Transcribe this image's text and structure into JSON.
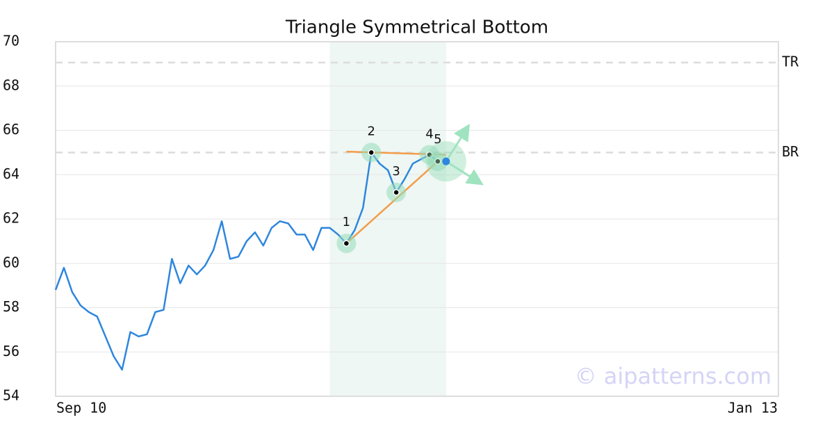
{
  "chart_data": {
    "type": "line",
    "title": "Triangle Symmetrical Bottom",
    "categories": [
      "Sep 10",
      null,
      null,
      null,
      null,
      null,
      null,
      null,
      null,
      null,
      null,
      null,
      null,
      null,
      null,
      null,
      null,
      null,
      null,
      null,
      null,
      null,
      null,
      null,
      null,
      null,
      null,
      null,
      null,
      null,
      null,
      null,
      null,
      null,
      null,
      null,
      null,
      null,
      null,
      null,
      null,
      null,
      null,
      null,
      null,
      null,
      null,
      null,
      null,
      null,
      null,
      null,
      null,
      null,
      null,
      null,
      null,
      null,
      null,
      null,
      null,
      null,
      null,
      null,
      null,
      null,
      null,
      null,
      null,
      null,
      null,
      null,
      null,
      null,
      null,
      null,
      null,
      null,
      null,
      null,
      null,
      null,
      null,
      null,
      null,
      null,
      null,
      "Jan 13"
    ],
    "values": [
      58.8,
      59.8,
      58.7,
      58.1,
      57.8,
      57.6,
      56.7,
      55.8,
      55.2,
      56.9,
      56.7,
      56.8,
      57.8,
      57.9,
      60.2,
      59.1,
      59.9,
      59.5,
      59.9,
      60.6,
      61.9,
      60.2,
      60.3,
      61.0,
      61.4,
      60.8,
      61.6,
      61.9,
      61.8,
      61.3,
      61.3,
      60.6,
      61.6,
      61.6,
      61.3,
      60.9,
      61.5,
      62.5,
      65.0,
      64.5,
      64.2,
      63.2,
      63.8,
      64.5,
      64.7,
      64.9,
      64.6,
      null,
      null,
      null,
      null,
      null,
      null,
      null,
      null,
      null,
      null,
      null,
      null,
      null,
      null,
      null,
      null,
      null,
      null,
      null,
      null,
      null,
      null,
      null,
      null,
      null,
      null,
      null,
      null,
      null,
      null,
      null,
      null,
      null,
      null,
      null,
      null,
      null,
      null,
      null,
      null,
      null
    ],
    "color": "#2e86de",
    "ylim": [
      54,
      70
    ],
    "yticks": [
      54,
      56,
      58,
      60,
      62,
      64,
      66,
      68,
      70
    ],
    "grid": true,
    "highlight": {
      "from": 33,
      "to": 47,
      "color": "#eef7f3"
    },
    "levels": [
      {
        "label": "TR",
        "value": 69.06
      },
      {
        "label": "BR",
        "value": 65.0
      }
    ],
    "pattern_points": [
      {
        "label": "1",
        "x": 35,
        "y": 60.9
      },
      {
        "label": "2",
        "x": 38,
        "y": 65.0
      },
      {
        "label": "3",
        "x": 41,
        "y": 63.2
      },
      {
        "label": "4",
        "x": 45,
        "y": 64.9
      },
      {
        "label": "5",
        "x": 46,
        "y": 64.6
      }
    ],
    "trendlines": [
      {
        "x": [
          35,
          47
        ],
        "y": [
          65.04,
          64.9
        ],
        "color": "#f39c4a"
      },
      {
        "x": [
          35,
          46
        ],
        "y": [
          60.9,
          64.6
        ],
        "color": "#f39c4a"
      }
    ],
    "breakout": {
      "x": 47,
      "y": 64.6,
      "color": "#2e86de"
    },
    "watermark": "© aipatterns.com"
  }
}
